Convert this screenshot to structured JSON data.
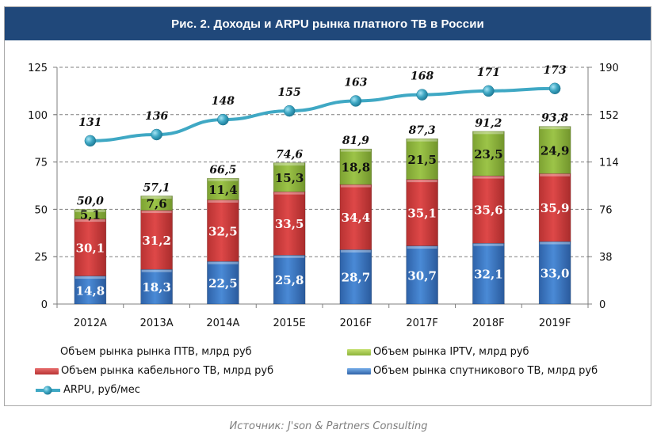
{
  "title": "Рис. 2. Доходы и ARPU рынка платного ТВ в России",
  "source": "Источник: J'son & Partners Consulting",
  "colors": {
    "title_bg": "#20487a",
    "iptv": "#8cb33a",
    "cable": "#d23c3c",
    "satellite": "#3a78c4",
    "arpu": "#3fa8c4"
  },
  "legend": {
    "total": "Объем рынка рынка ПТВ, млрд руб",
    "iptv": "Объем рынка IPTV, млрд руб",
    "cable": "Объем рынка кабельного ТВ, млрд руб",
    "satellite": "Объем рынка спутникового ТВ, млрд руб",
    "arpu": "ARPU, руб/мес"
  },
  "chart_data": {
    "type": "bar",
    "stacked": true,
    "title": "Рис. 2. Доходы и ARPU рынка платного ТВ в России",
    "categories": [
      "2012A",
      "2013A",
      "2014A",
      "2015E",
      "2016F",
      "2017F",
      "2018F",
      "2019F"
    ],
    "series": [
      {
        "name": "Объем рынка спутникового ТВ, млрд руб",
        "key": "satellite",
        "axis": "left",
        "values": [
          14.8,
          18.3,
          22.5,
          25.8,
          28.7,
          30.7,
          32.1,
          33.0
        ],
        "labels": [
          "14,8",
          "18,3",
          "22,5",
          "25,8",
          "28,7",
          "30,7",
          "32,1",
          "33,0"
        ]
      },
      {
        "name": "Объем рынка кабельного ТВ, млрд руб",
        "key": "cable",
        "axis": "left",
        "values": [
          30.1,
          31.2,
          32.5,
          33.5,
          34.4,
          35.1,
          35.6,
          35.9
        ],
        "labels": [
          "30,1",
          "31,2",
          "32,5",
          "33,5",
          "34,4",
          "35,1",
          "35,6",
          "35,9"
        ]
      },
      {
        "name": "Объем рынка IPTV, млрд руб",
        "key": "iptv",
        "axis": "left",
        "values": [
          5.1,
          7.6,
          11.4,
          15.3,
          18.8,
          21.5,
          23.5,
          24.9
        ],
        "labels": [
          "5,1",
          "7,6",
          "11,4",
          "15,3",
          "18,8",
          "21,5",
          "23,5",
          "24,9"
        ]
      },
      {
        "name": "Объем рынка рынка ПТВ, млрд руб",
        "key": "total",
        "axis": "left",
        "type": "label-only",
        "values": [
          50.0,
          57.1,
          66.5,
          74.6,
          81.9,
          87.3,
          91.2,
          93.8
        ],
        "labels": [
          "50,0",
          "57,1",
          "66,5",
          "74,6",
          "81,9",
          "87,3",
          "91,2",
          "93,8"
        ]
      },
      {
        "name": "ARPU, руб/мес",
        "key": "arpu",
        "axis": "right",
        "type": "line",
        "values": [
          131,
          136,
          148,
          155,
          163,
          168,
          171,
          173
        ],
        "labels": [
          "131",
          "136",
          "148",
          "155",
          "163",
          "168",
          "171",
          "173"
        ]
      }
    ],
    "y_left": {
      "ylim": [
        0,
        125
      ],
      "ticks": [
        0,
        25,
        50,
        75,
        100,
        125
      ]
    },
    "y_right": {
      "ylim": [
        0,
        190
      ],
      "ticks": [
        0,
        38,
        76,
        114,
        152,
        190
      ]
    },
    "grid": "horizontal-dashed",
    "legend_position": "bottom",
    "xlabel": "",
    "ylabel": ""
  }
}
